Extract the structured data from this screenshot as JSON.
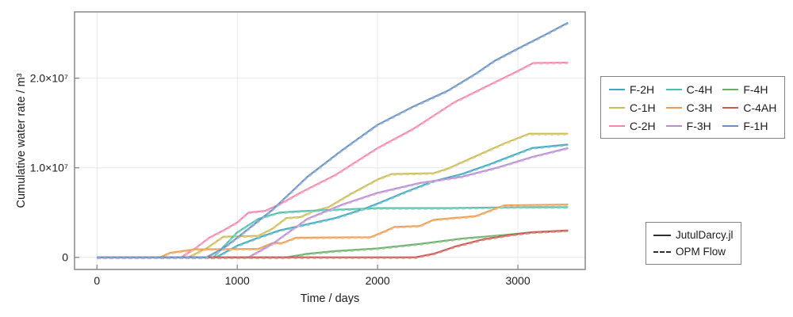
{
  "chart_data": {
    "type": "line",
    "title": "",
    "xlabel": "Time / days",
    "ylabel": "Cumulative water rate / m³",
    "xlim": [
      -160,
      3480
    ],
    "ylim": [
      -1350000,
      27400000
    ],
    "grid": true,
    "legend_position": "right-outside",
    "x_ticks": [
      0,
      1000,
      2000,
      3000
    ],
    "x_tick_labels": [
      "0",
      "1000",
      "2000",
      "3000"
    ],
    "y_ticks": [
      0,
      10000000,
      20000000
    ],
    "y_tick_labels": [
      "0",
      "1.0×10⁷",
      "2.0×10⁷"
    ],
    "variants": [
      {
        "name": "JutulDarcy.jl",
        "style": "solid",
        "color": "#2e2e2e"
      },
      {
        "name": "OPM Flow",
        "style": "dashed",
        "color": "#2e2e2e"
      }
    ],
    "series": [
      {
        "name": "F-2H",
        "color": "#3FA8C1",
        "x": [
          0,
          850,
          1000,
          1150,
          1300,
          1500,
          1700,
          1900,
          2000,
          2200,
          2400,
          2600,
          2800,
          3000,
          3100,
          3358
        ],
        "y": [
          0,
          0,
          1300000,
          2200000,
          3000000,
          3700000,
          4400000,
          5400000,
          6000000,
          7300000,
          8500000,
          9300000,
          10400000,
          11600000,
          12200000,
          12600000
        ]
      },
      {
        "name": "C-1H",
        "color": "#CBBC57",
        "x": [
          0,
          650,
          780,
          900,
          1150,
          1250,
          1350,
          1450,
          1550,
          1650,
          1800,
          2000,
          2100,
          2400,
          2500,
          2700,
          2900,
          3080,
          3358
        ],
        "y": [
          0,
          0,
          1000000,
          2300000,
          2400000,
          3200000,
          4400000,
          4500000,
          5200000,
          5600000,
          7000000,
          8700000,
          9300000,
          9400000,
          9900000,
          11300000,
          12700000,
          13800000,
          13800000
        ]
      },
      {
        "name": "C-2H",
        "color": "#F287AE",
        "x": [
          0,
          600,
          700,
          800,
          900,
          1000,
          1080,
          1200,
          1300,
          1460,
          1700,
          2000,
          2250,
          2545,
          2830,
          3000,
          3110,
          3358
        ],
        "y": [
          0,
          0,
          1000000,
          2200000,
          3000000,
          3900000,
          5000000,
          5200000,
          5900000,
          7300000,
          9200000,
          12200000,
          14300000,
          17300000,
          19500000,
          20800000,
          21700000,
          21750000
        ]
      },
      {
        "name": "C-4H",
        "color": "#4FBFAC",
        "x": [
          0,
          830,
          1000,
          1150,
          1300,
          1500,
          2000,
          2500,
          3000,
          3358
        ],
        "y": [
          0,
          0,
          2800000,
          4300000,
          5000000,
          5200000,
          5500000,
          5500000,
          5600000,
          5600000
        ]
      },
      {
        "name": "C-3H",
        "color": "#EC9C52",
        "x": [
          0,
          450,
          520,
          700,
          1150,
          1250,
          1320,
          1420,
          1950,
          2050,
          2120,
          2300,
          2400,
          2480,
          2700,
          2900,
          3358
        ],
        "y": [
          0,
          0,
          500000,
          900000,
          950000,
          1600000,
          1600000,
          2200000,
          2250000,
          2900000,
          3400000,
          3500000,
          4200000,
          4300000,
          4600000,
          5800000,
          5900000
        ]
      },
      {
        "name": "F-3H",
        "color": "#BA8DD0",
        "x": [
          0,
          1080,
          1250,
          1500,
          1750,
          2000,
          2300,
          2600,
          2850,
          3100,
          3358
        ],
        "y": [
          0,
          0,
          1500000,
          4300000,
          5900000,
          7200000,
          8300000,
          9000000,
          10000000,
          11200000,
          12200000
        ]
      },
      {
        "name": "F-4H",
        "color": "#6BAE68",
        "x": [
          0,
          1350,
          1500,
          1700,
          2000,
          2300,
          2600,
          2900,
          3100,
          3358
        ],
        "y": [
          0,
          0,
          400000,
          700000,
          1000000,
          1500000,
          2100000,
          2500000,
          2800000,
          3000000
        ]
      },
      {
        "name": "C-4AH",
        "color": "#CB5850",
        "x": [
          0,
          2270,
          2400,
          2550,
          2750,
          2950,
          3100,
          3358
        ],
        "y": [
          0,
          0,
          400000,
          1200000,
          2000000,
          2500000,
          2800000,
          3000000
        ]
      },
      {
        "name": "F-1H",
        "color": "#6790C5",
        "x": [
          0,
          780,
          900,
          1000,
          1250,
          1500,
          1750,
          2000,
          2250,
          2500,
          2700,
          2830,
          3000,
          3200,
          3358
        ],
        "y": [
          0,
          0,
          1000000,
          2200000,
          5300000,
          9000000,
          12000000,
          14800000,
          16800000,
          18600000,
          20500000,
          21900000,
          23300000,
          24900000,
          26200000
        ]
      }
    ]
  }
}
